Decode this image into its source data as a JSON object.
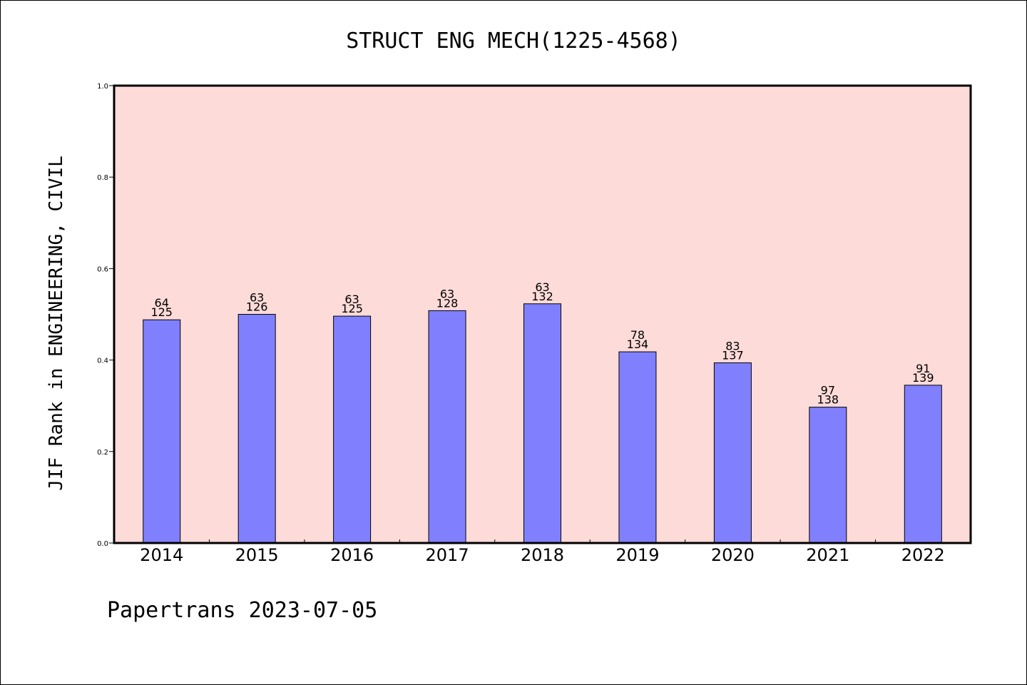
{
  "chart_data": {
    "type": "bar",
    "title": "STRUCT ENG MECH(1225-4568)",
    "xlabel": "",
    "ylabel": "JIF Rank in ENGINEERING, CIVIL",
    "ylim": [
      0.0,
      1.0
    ],
    "y_ticks": [
      "0.0",
      "0.2",
      "0.4",
      "0.6",
      "0.8",
      "1.0"
    ],
    "categories": [
      "2014",
      "2015",
      "2016",
      "2017",
      "2018",
      "2019",
      "2020",
      "2021",
      "2022"
    ],
    "values": [
      0.488,
      0.5,
      0.496,
      0.508,
      0.523,
      0.418,
      0.394,
      0.297,
      0.345
    ],
    "rank": [
      "64",
      "63",
      "63",
      "63",
      "63",
      "78",
      "83",
      "97",
      "91"
    ],
    "total": [
      "125",
      "126",
      "125",
      "128",
      "132",
      "134",
      "137",
      "138",
      "139"
    ],
    "grid": false,
    "legend": "none",
    "colors": {
      "bar_fill": "#8080ff",
      "plot_background": "#fddbd8",
      "axis": "#000000"
    }
  },
  "footer": "Papertrans 2023-07-05"
}
